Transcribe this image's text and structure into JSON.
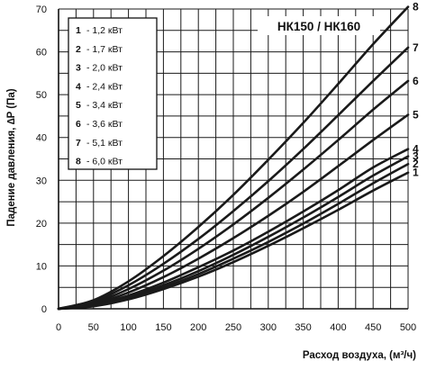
{
  "chart_data": {
    "type": "line",
    "model_label": "НК150 / НК160",
    "xlabel": "Расход воздуха, (м³/ч)",
    "ylabel": "Падение давления, ∆P (Па)",
    "xlim": [
      0,
      500
    ],
    "ylim": [
      0,
      70
    ],
    "x_ticks": [
      "0",
      "50",
      "100",
      "150",
      "200",
      "250",
      "300",
      "350",
      "400",
      "450",
      "500"
    ],
    "y_ticks": [
      "0",
      "10",
      "20",
      "30",
      "40",
      "50",
      "60",
      "70"
    ],
    "grid": true,
    "legend_position": "top-left",
    "legend": [
      {
        "num": "1",
        "text": "- 1,2 кВт"
      },
      {
        "num": "2",
        "text": "- 1,7 кВт"
      },
      {
        "num": "3",
        "text": "- 2,0 кВт"
      },
      {
        "num": "4",
        "text": "- 2,4 кВт"
      },
      {
        "num": "5",
        "text": "- 3,4 кВт"
      },
      {
        "num": "6",
        "text": "- 3,6 кВт"
      },
      {
        "num": "7",
        "text": "- 5,1 кВт"
      },
      {
        "num": "8",
        "text": "- 6,0 кВт"
      }
    ],
    "series": [
      {
        "name": "1",
        "x": [
          0,
          50,
          100,
          150,
          200,
          250,
          300,
          350,
          400,
          450,
          500
        ],
        "y": [
          0,
          0.6,
          2.2,
          4.6,
          7.5,
          10.9,
          14.7,
          18.8,
          23.1,
          27.6,
          31.8
        ]
      },
      {
        "name": "2",
        "x": [
          0,
          50,
          100,
          150,
          200,
          250,
          300,
          350,
          400,
          450,
          500
        ],
        "y": [
          0,
          0.7,
          2.5,
          5.0,
          8.1,
          11.7,
          15.6,
          19.9,
          24.5,
          29.3,
          33.8
        ]
      },
      {
        "name": "3",
        "x": [
          0,
          50,
          100,
          150,
          200,
          250,
          300,
          350,
          400,
          450,
          500
        ],
        "y": [
          0,
          0.8,
          2.8,
          5.5,
          8.8,
          12.6,
          16.8,
          21.3,
          26.1,
          31.1,
          35.6
        ]
      },
      {
        "name": "4",
        "x": [
          0,
          50,
          100,
          150,
          200,
          250,
          300,
          350,
          400,
          450,
          500
        ],
        "y": [
          0,
          0.9,
          3.1,
          6.1,
          9.7,
          13.6,
          18.0,
          22.7,
          27.7,
          33.0,
          37.3
        ]
      },
      {
        "name": "5",
        "x": [
          0,
          50,
          100,
          150,
          200,
          250,
          300,
          350,
          400,
          450,
          500
        ],
        "y": [
          0,
          1.1,
          3.8,
          7.4,
          11.7,
          16.5,
          21.7,
          27.3,
          33.3,
          39.4,
          45.3
        ]
      },
      {
        "name": "6",
        "x": [
          0,
          50,
          100,
          150,
          200,
          250,
          300,
          350,
          400,
          450,
          500
        ],
        "y": [
          0,
          1.4,
          4.6,
          8.9,
          14.0,
          19.7,
          25.9,
          32.5,
          39.4,
          46.5,
          53.2
        ]
      },
      {
        "name": "7",
        "x": [
          0,
          50,
          100,
          150,
          200,
          250,
          300,
          350,
          400,
          450,
          500
        ],
        "y": [
          0,
          1.7,
          5.5,
          10.5,
          16.3,
          22.8,
          29.8,
          37.3,
          45.2,
          53.2,
          61.0
        ]
      },
      {
        "name": "8",
        "x": [
          0,
          50,
          100,
          150,
          200,
          250,
          300,
          350,
          400,
          450,
          500
        ],
        "y": [
          0,
          2.0,
          6.4,
          12.3,
          19.1,
          26.6,
          34.8,
          43.4,
          52.5,
          61.8,
          70.5
        ]
      }
    ],
    "line_color": "#1a1a1a",
    "grid_color": "#1a1a1a"
  }
}
